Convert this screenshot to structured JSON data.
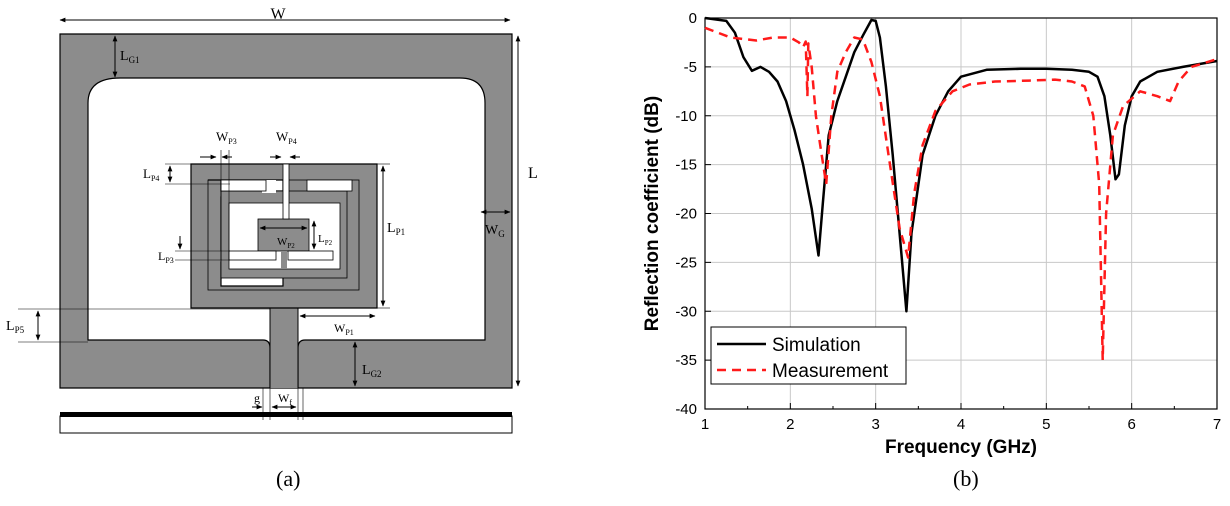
{
  "panel_a": {
    "caption": "(a)",
    "labels": {
      "W": "W",
      "L": "L",
      "LG1": "L",
      "LG1_sub": "G1",
      "LG2": "L",
      "LG2_sub": "G2",
      "WG": "W",
      "WG_sub": "G",
      "WP3": "W",
      "WP3_sub": "P3",
      "WP4": "W",
      "WP4_sub": "P4",
      "LP4": "L",
      "LP4_sub": "P4",
      "LP1": "L",
      "LP1_sub": "P1",
      "WP2": "W",
      "WP2_sub": "P2",
      "LP2": "L",
      "LP2_sub": "P2",
      "LP3": "L",
      "LP3_sub": "P3",
      "LP5": "L",
      "LP5_sub": "P5",
      "WP1": "W",
      "WP1_sub": "P1",
      "g": "g",
      "Wf": "W",
      "Wf_sub": "f"
    }
  },
  "panel_b": {
    "caption": "(b)",
    "chart_data": {
      "type": "line",
      "title": "",
      "xlabel": "Frequency (GHz)",
      "ylabel": "Reflection coefficient (dB)",
      "xlim": [
        1,
        7
      ],
      "ylim": [
        -40,
        0
      ],
      "xticks": [
        1,
        2,
        3,
        4,
        5,
        6,
        7
      ],
      "yticks": [
        0,
        -5,
        -10,
        -15,
        -20,
        -25,
        -30,
        -35,
        -40
      ],
      "grid": true,
      "legend_position": "bottom-left",
      "series": [
        {
          "name": "Simulation",
          "color": "#000000",
          "dash": "solid",
          "points": [
            [
              1.0,
              0.0
            ],
            [
              1.25,
              -0.3
            ],
            [
              1.35,
              -1.5
            ],
            [
              1.45,
              -4.0
            ],
            [
              1.55,
              -5.4
            ],
            [
              1.65,
              -5.0
            ],
            [
              1.75,
              -5.5
            ],
            [
              1.85,
              -6.5
            ],
            [
              1.95,
              -8.5
            ],
            [
              2.05,
              -11.5
            ],
            [
              2.15,
              -15.0
            ],
            [
              2.25,
              -19.5
            ],
            [
              2.33,
              -24.3
            ],
            [
              2.38,
              -19.0
            ],
            [
              2.45,
              -12.0
            ],
            [
              2.55,
              -8.5
            ],
            [
              2.65,
              -6.0
            ],
            [
              2.75,
              -3.5
            ],
            [
              2.85,
              -1.8
            ],
            [
              2.95,
              -0.2
            ],
            [
              3.0,
              -0.3
            ],
            [
              3.05,
              -2.0
            ],
            [
              3.12,
              -7.0
            ],
            [
              3.2,
              -14.0
            ],
            [
              3.3,
              -24.0
            ],
            [
              3.36,
              -30.0
            ],
            [
              3.42,
              -22.0
            ],
            [
              3.55,
              -14.0
            ],
            [
              3.7,
              -10.0
            ],
            [
              3.85,
              -7.5
            ],
            [
              4.0,
              -6.0
            ],
            [
              4.3,
              -5.3
            ],
            [
              4.7,
              -5.2
            ],
            [
              5.0,
              -5.2
            ],
            [
              5.3,
              -5.3
            ],
            [
              5.5,
              -5.5
            ],
            [
              5.6,
              -6.0
            ],
            [
              5.68,
              -8.0
            ],
            [
              5.75,
              -12.0
            ],
            [
              5.81,
              -16.5
            ],
            [
              5.85,
              -16.0
            ],
            [
              5.92,
              -11.0
            ],
            [
              6.0,
              -8.0
            ],
            [
              6.1,
              -6.5
            ],
            [
              6.3,
              -5.5
            ],
            [
              6.6,
              -5.0
            ],
            [
              7.0,
              -4.4
            ]
          ]
        },
        {
          "name": "Measurement",
          "color": "#ff1a1a",
          "dash": "dashed",
          "points": [
            [
              1.0,
              -1.0
            ],
            [
              1.3,
              -2.0
            ],
            [
              1.6,
              -2.3
            ],
            [
              1.8,
              -2.0
            ],
            [
              2.0,
              -2.0
            ],
            [
              2.1,
              -2.5
            ],
            [
              2.15,
              -3.0
            ],
            [
              2.18,
              -2.4
            ],
            [
              2.2,
              -8.0
            ],
            [
              2.21,
              -2.6
            ],
            [
              2.25,
              -5.0
            ],
            [
              2.3,
              -10.0
            ],
            [
              2.35,
              -13.0
            ],
            [
              2.42,
              -17.0
            ],
            [
              2.48,
              -10.0
            ],
            [
              2.55,
              -5.5
            ],
            [
              2.65,
              -3.5
            ],
            [
              2.75,
              -2.0
            ],
            [
              2.85,
              -2.2
            ],
            [
              2.95,
              -4.5
            ],
            [
              3.05,
              -8.0
            ],
            [
              3.15,
              -14.0
            ],
            [
              3.28,
              -21.5
            ],
            [
              3.38,
              -24.5
            ],
            [
              3.45,
              -18.0
            ],
            [
              3.55,
              -13.0
            ],
            [
              3.7,
              -9.5
            ],
            [
              3.9,
              -7.5
            ],
            [
              4.1,
              -6.8
            ],
            [
              4.4,
              -6.5
            ],
            [
              4.8,
              -6.4
            ],
            [
              5.1,
              -6.3
            ],
            [
              5.3,
              -6.5
            ],
            [
              5.45,
              -7.0
            ],
            [
              5.55,
              -10.0
            ],
            [
              5.62,
              -17.0
            ],
            [
              5.66,
              -35.0
            ],
            [
              5.7,
              -20.0
            ],
            [
              5.78,
              -12.0
            ],
            [
              5.9,
              -9.0
            ],
            [
              6.1,
              -7.5
            ],
            [
              6.3,
              -8.0
            ],
            [
              6.45,
              -8.5
            ],
            [
              6.55,
              -6.5
            ],
            [
              6.7,
              -5.0
            ],
            [
              7.0,
              -4.2
            ]
          ]
        }
      ]
    }
  }
}
